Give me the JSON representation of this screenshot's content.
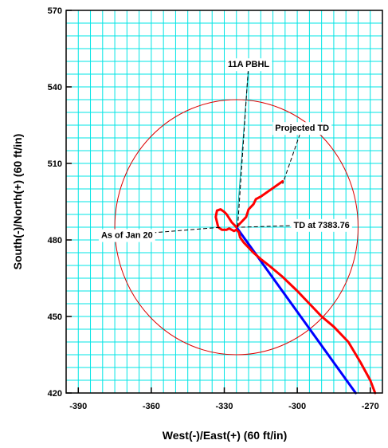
{
  "chart_data": {
    "type": "line",
    "xlabel": "West(-)/East(+) (60 ft/in)",
    "ylabel": "South(-)/North(+) (60 ft/in)",
    "xlim": [
      -395,
      -265
    ],
    "ylim": [
      420,
      570
    ],
    "x_ticks": [
      -390,
      -360,
      -330,
      -300,
      -270
    ],
    "y_ticks": [
      420,
      450,
      480,
      510,
      540,
      570
    ],
    "grid": true,
    "grid_minor_x": 5,
    "grid_minor_y": 5,
    "colors": {
      "grid": "#00e5e5",
      "planned": "#0000ff",
      "actual": "#ff0000",
      "circle": "#dd0000",
      "leader": "#000000",
      "target": "#00aaaa"
    },
    "series": [
      {
        "color": "#0000ff",
        "x": [
          -325,
          -276
        ],
        "y": [
          485,
          420
        ]
      },
      {
        "color": "#ff0000",
        "x": [
          -325,
          -323,
          -321,
          -320,
          -318,
          -317,
          -315,
          -312,
          -309,
          -306
        ],
        "y": [
          485,
          487,
          489,
          492,
          494,
          496,
          497,
          499,
          501,
          503
        ]
      },
      {
        "color": "#ff0000",
        "x": [
          -325,
          -327,
          -329,
          -330,
          -331.5,
          -333,
          -333.5,
          -332.5,
          -331,
          -329,
          -328,
          -327,
          -326,
          -325,
          -324,
          -323.5,
          -322,
          -320,
          -318,
          -315,
          -311,
          -306,
          -300,
          -295,
          -290,
          -285,
          -279,
          -274,
          -270,
          -268
        ],
        "y": [
          485,
          487,
          490,
          491,
          492,
          491.5,
          489,
          485,
          484,
          484,
          484.5,
          484,
          483.5,
          484,
          483,
          481,
          479,
          477,
          475,
          472.5,
          469.5,
          465.5,
          460,
          455,
          450,
          446,
          440,
          432,
          425,
          420
        ]
      }
    ],
    "circle": {
      "center": [
        -325,
        485
      ],
      "radius": 50
    },
    "target_line": {
      "x": [
        -325,
        -320
      ],
      "y": [
        485,
        548
      ]
    },
    "annotations": [
      {
        "text": "11A  PBHL",
        "label_at": [
          -320,
          549
        ],
        "point": [
          -324.5,
          485
        ]
      },
      {
        "text": "Projected TD",
        "label_at": [
          -298,
          524
        ],
        "point": [
          -306,
          502
        ]
      },
      {
        "text": "As of Jan 20",
        "label_at": [
          -370,
          482
        ],
        "point": [
          -331,
          485
        ]
      },
      {
        "text": "TD at 7383.76",
        "label_at": [
          -290,
          486
        ],
        "point": [
          -323,
          485
        ]
      }
    ]
  }
}
